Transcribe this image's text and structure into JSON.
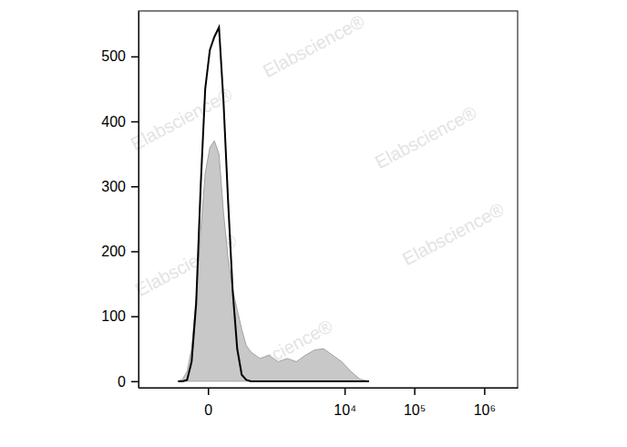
{
  "chart_data": {
    "type": "area",
    "log": "x",
    "x": [
      -190,
      -148,
      -112,
      -81,
      -54,
      -31,
      -11,
      7,
      26,
      49,
      75,
      105,
      141,
      182,
      229,
      284,
      349,
      510,
      727,
      1020,
      1416,
      1950,
      2670,
      3640,
      4950,
      6710,
      9100,
      12300,
      16660,
      22500
    ],
    "series": [
      {
        "type": "area",
        "color": "#c8c8c8",
        "values": [
          0,
          3,
          15,
          50,
          130,
          230,
          320,
          360,
          370,
          350,
          260,
          190,
          140,
          110,
          80,
          55,
          45,
          35,
          40,
          30,
          35,
          30,
          40,
          48,
          50,
          40,
          30,
          15,
          3,
          0
        ]
      },
      {
        "type": "line",
        "color": "#000000",
        "values": [
          0,
          0,
          2,
          30,
          120,
          300,
          450,
          510,
          530,
          545,
          430,
          280,
          140,
          50,
          10,
          2,
          0,
          0,
          0,
          0,
          0,
          0,
          0,
          0,
          0,
          0,
          0,
          0,
          0,
          0
        ]
      }
    ],
    "xlim": [
      -1000,
      3000000
    ],
    "xticks": [
      0,
      {
        "value": 10000,
        "label": "10⁴"
      },
      {
        "value": 100000,
        "label": "10⁵"
      },
      {
        "value": 1000000,
        "label": "10⁶"
      }
    ],
    "ylim": [
      -10,
      570
    ],
    "yticks": [
      0,
      100,
      200,
      300,
      400,
      500
    ],
    "grid": false,
    "annotations": [
      "Elabscience®",
      "Elabscience®",
      "Elabscience®",
      "Elabscience®",
      "Elabscience®",
      "Elabscience®"
    ]
  }
}
